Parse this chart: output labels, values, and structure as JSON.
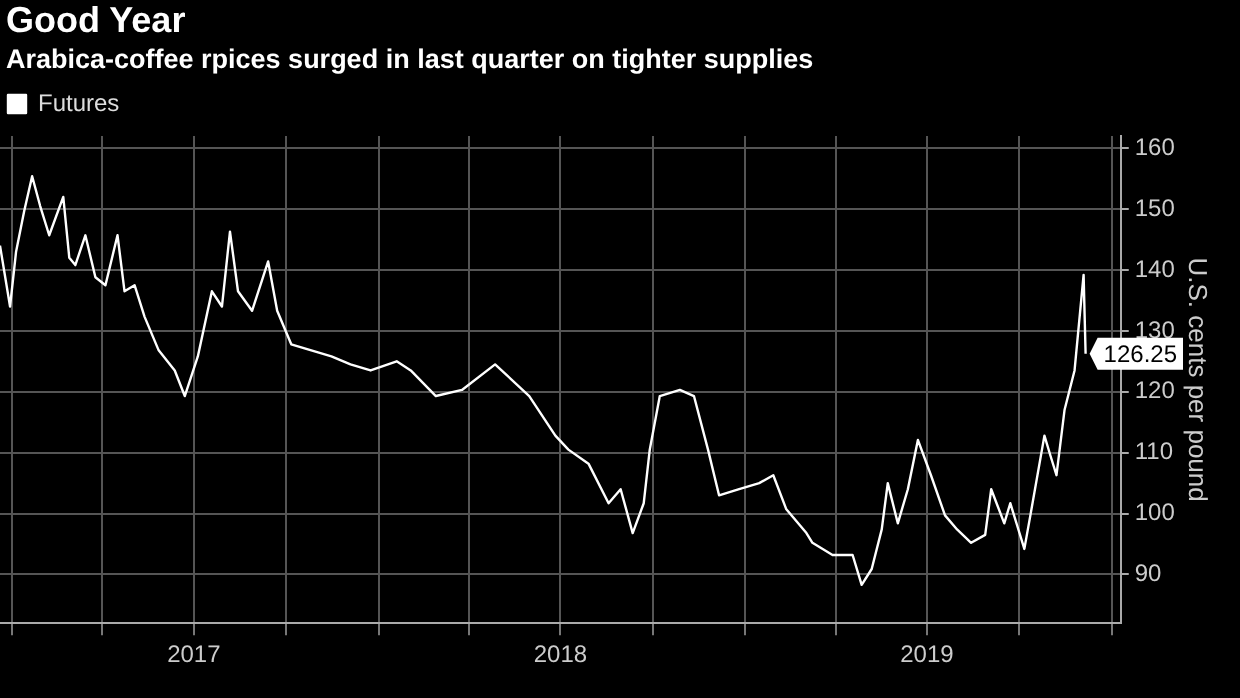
{
  "chart_data": {
    "type": "line",
    "title": "Good Year",
    "subtitle": "Arabica-coffee rpices surged in last quarter on tighter supplies",
    "ylabel": "U.S. cents per pound",
    "x": [
      "2016-12-20",
      "2016-12-30",
      "2017-01-05",
      "2017-01-13",
      "2017-01-21",
      "2017-01-29",
      "2017-02-07",
      "2017-02-21",
      "2017-02-27",
      "2017-03-05",
      "2017-03-15",
      "2017-03-25",
      "2017-04-04",
      "2017-04-16",
      "2017-04-23",
      "2017-05-03",
      "2017-05-13",
      "2017-05-27",
      "2017-06-12",
      "2017-06-22",
      "2017-07-05",
      "2017-07-19",
      "2017-07-29",
      "2017-08-06",
      "2017-08-14",
      "2017-08-28",
      "2017-09-13",
      "2017-09-22",
      "2017-10-06",
      "2017-10-26",
      "2017-11-15",
      "2017-12-04",
      "2017-12-24",
      "2018-01-19",
      "2018-02-02",
      "2018-02-27",
      "2018-03-25",
      "2018-04-27",
      "2018-05-31",
      "2018-06-26",
      "2018-07-09",
      "2018-07-29",
      "2018-08-18",
      "2018-08-30",
      "2018-09-11",
      "2018-09-22",
      "2018-09-28",
      "2018-10-08",
      "2018-10-28",
      "2018-11-11",
      "2018-11-25",
      "2018-12-06",
      "2018-12-26",
      "2019-01-15",
      "2019-01-29",
      "2019-02-11",
      "2019-03-03",
      "2019-03-09",
      "2019-03-29",
      "2019-04-18",
      "2019-04-27",
      "2019-05-07",
      "2019-05-17",
      "2019-05-23",
      "2019-06-02",
      "2019-06-12",
      "2019-06-22",
      "2019-07-05",
      "2019-07-19",
      "2019-07-31",
      "2019-08-14",
      "2019-08-28",
      "2019-09-03",
      "2019-09-16",
      "2019-09-22",
      "2019-10-06",
      "2019-10-12",
      "2019-10-26",
      "2019-11-01",
      "2019-11-07",
      "2019-11-15",
      "2019-11-25",
      "2019-12-04",
      "2019-12-06"
    ],
    "series": [
      {
        "name": "Futures",
        "color": "#ffffff",
        "values": [
          144,
          134,
          143,
          149.6,
          155.4,
          150.5,
          145.7,
          152,
          142,
          140.8,
          145.7,
          138.8,
          137.5,
          145.7,
          136.5,
          137.5,
          132.3,
          126.8,
          123.5,
          119.3,
          125.8,
          136.5,
          134,
          146.3,
          136.5,
          133.3,
          141.4,
          133.3,
          127.8,
          126.8,
          125.8,
          124.5,
          123.5,
          125,
          123.5,
          119.3,
          120.3,
          124.5,
          119.3,
          112.8,
          110.5,
          108.2,
          101.7,
          104,
          96.8,
          101.7,
          110.5,
          119.3,
          120.3,
          119.3,
          110.5,
          103,
          104,
          105,
          106.3,
          100.7,
          96.8,
          95.2,
          93.2,
          93.2,
          88.3,
          90.9,
          97.4,
          105,
          98.4,
          104,
          112.1,
          106.3,
          99.7,
          97.4,
          95.2,
          96.5,
          104,
          98.4,
          101.7,
          94.2,
          99.7,
          112.8,
          109.5,
          106.3,
          117,
          123.5,
          139.2,
          126.25
        ],
        "value_labels": [
          null,
          null,
          null,
          null,
          null,
          null,
          null,
          null,
          null,
          null,
          null,
          null,
          null,
          null,
          null,
          null,
          null,
          null,
          null,
          null,
          null,
          null,
          null,
          null,
          null,
          null,
          null,
          null,
          null,
          null,
          null,
          null,
          null,
          null,
          null,
          null,
          null,
          null,
          null,
          null,
          null,
          null,
          null,
          null,
          null,
          null,
          null,
          null,
          null,
          null,
          null,
          null,
          null,
          null,
          null,
          null,
          null,
          null,
          null,
          null,
          null,
          null,
          null,
          null,
          null,
          null,
          null,
          null,
          null,
          null,
          null,
          null,
          null,
          null,
          null,
          null,
          null,
          null,
          null,
          null,
          null,
          null,
          null,
          "126.25"
        ]
      }
    ],
    "xlim": [
      "2016-12-20",
      "2020-01-10"
    ],
    "xticks": [
      {
        "value": "2017-01-01",
        "label": null
      },
      {
        "value": "2017-04-01",
        "label": null
      },
      {
        "value": "2017-07-01",
        "label": "2017"
      },
      {
        "value": "2017-10-01",
        "label": null
      },
      {
        "value": "2018-01-01",
        "label": null
      },
      {
        "value": "2018-04-01",
        "label": null
      },
      {
        "value": "2018-07-01",
        "label": "2018"
      },
      {
        "value": "2018-10-01",
        "label": null
      },
      {
        "value": "2019-01-01",
        "label": null
      },
      {
        "value": "2019-04-01",
        "label": null
      },
      {
        "value": "2019-07-01",
        "label": "2019"
      },
      {
        "value": "2019-10-01",
        "label": null
      },
      {
        "value": "2020-01-01",
        "label": null
      }
    ],
    "ylim": [
      82,
      162
    ],
    "yticks": [
      90,
      100,
      110,
      120,
      130,
      140,
      150,
      160
    ],
    "grid": true,
    "legend": "top left",
    "marker": "none",
    "line_style": "solid"
  }
}
